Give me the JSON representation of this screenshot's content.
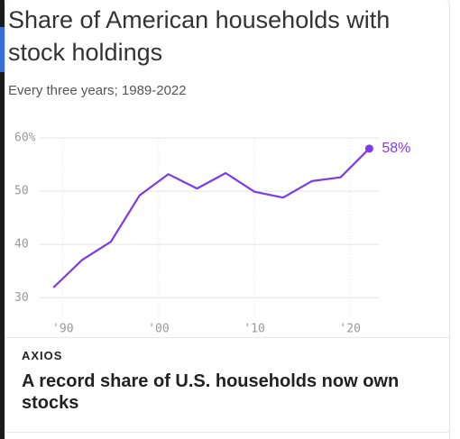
{
  "title": "Share of American households with stock holdings",
  "subtitle": "Every three years; 1989-2022",
  "brand": "AXIOS",
  "headline": "A record share of U.S. households now own stocks",
  "chart_data": {
    "type": "line",
    "x": [
      1989,
      1992,
      1995,
      1998,
      2001,
      2004,
      2007,
      2010,
      2013,
      2016,
      2019,
      2022
    ],
    "values": [
      31.9,
      37.1,
      40.5,
      49.2,
      53.2,
      50.5,
      53.4,
      49.9,
      48.8,
      51.9,
      52.6,
      58
    ],
    "value_labels": [
      null,
      null,
      null,
      null,
      null,
      null,
      null,
      null,
      null,
      null,
      null,
      "58%"
    ],
    "color": "#7c3aed",
    "xlim": [
      1987,
      2023
    ],
    "xticks": [
      {
        "value": 1990,
        "label": "'90"
      },
      {
        "value": 2000,
        "label": "'00"
      },
      {
        "value": 2010,
        "label": "'10"
      },
      {
        "value": 2020,
        "label": "'20"
      }
    ],
    "ylim": [
      27,
      60
    ],
    "yticks": [
      30,
      40,
      50,
      {
        "value": 60,
        "label": "60%"
      }
    ],
    "grid": true
  }
}
